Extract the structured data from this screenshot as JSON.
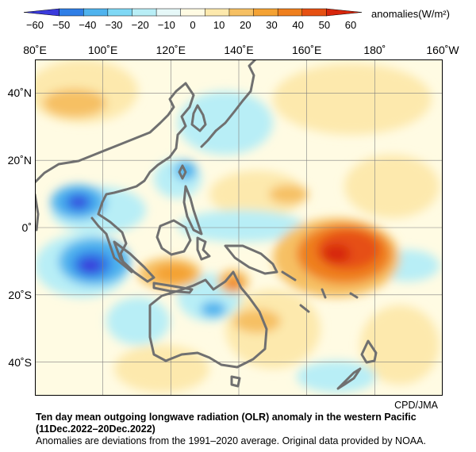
{
  "colorbar": {
    "ticks": [
      "−60",
      "−50",
      "−40",
      "−30",
      "−20",
      "−10",
      "0",
      "10",
      "20",
      "30",
      "40",
      "50",
      "60"
    ],
    "unit_label": "anomalies(W/m²)",
    "colors": [
      "#3a3adc",
      "#2f7ee6",
      "#4fb3ee",
      "#7fd8f5",
      "#b8eef6",
      "#e6f8f8",
      "#fffbe3",
      "#fde9ad",
      "#f6c063",
      "#f4a233",
      "#ef7f1d",
      "#e65012",
      "#d7260c"
    ]
  },
  "map": {
    "lon_labels": [
      "80˚E",
      "100˚E",
      "120˚E",
      "140˚E",
      "160˚E",
      "180˚",
      "160˚W"
    ],
    "lat_labels": [
      "40˚N",
      "20˚N",
      "0˚",
      "20˚S",
      "40˚S"
    ],
    "coast_color": "#707070"
  },
  "credit": "CPD/JMA",
  "caption": {
    "title": "Ten day mean outgoing longwave radiation (OLR) anomaly in the western Pacific",
    "period": "(11Dec.2022–20Dec.2022)",
    "note": "Anomalies are deviations from the 1991–2020 average. Original data provided by NOAA."
  }
}
